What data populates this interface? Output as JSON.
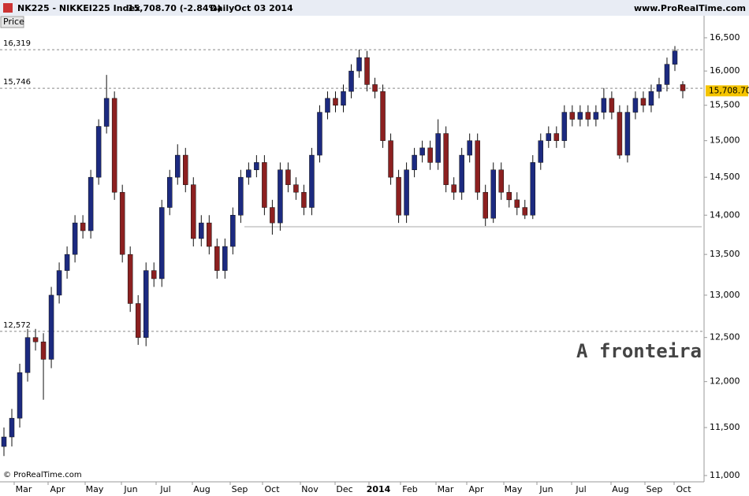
{
  "chart_data": {
    "type": "candlestick",
    "symbol": "NK225 - NIKKEI225 Index",
    "quote": "15,708.70 (-2.84%)",
    "period": "Daily",
    "date": "Oct 03 2014",
    "site": "www.ProRealTime.com",
    "panel_label": "Price",
    "annotation": "A fronteira",
    "copyright": "© ProRealTime.com",
    "log_scale": true,
    "up_color": "#1c2a80",
    "down_color": "#8c2020",
    "categories": [
      "Mar",
      "Apr",
      "May",
      "Jun",
      "Jul",
      "Aug",
      "Sep",
      "Oct",
      "Nov",
      "Dec",
      "2014",
      "Feb",
      "Mar",
      "Apr",
      "May",
      "Jun",
      "Jul",
      "Aug",
      "Sep",
      "Oct"
    ],
    "ylim": [
      10936,
      16840
    ],
    "yticks": [
      {
        "value": 11000,
        "label": "11,000"
      },
      {
        "value": 11500,
        "label": "11,500"
      },
      {
        "value": 12000,
        "label": "12,000"
      },
      {
        "value": 12500,
        "label": "12,500"
      },
      {
        "value": 13000,
        "label": "13,000"
      },
      {
        "value": 13500,
        "label": "13,500"
      },
      {
        "value": 14000,
        "label": "14,000"
      },
      {
        "value": 14500,
        "label": "14,500"
      },
      {
        "value": 15000,
        "label": "15,000"
      },
      {
        "value": 15500,
        "label": "15,500"
      },
      {
        "value": 16000,
        "label": "16,000"
      },
      {
        "value": 16500,
        "label": "16,500"
      }
    ],
    "levels": [
      {
        "value": 16319,
        "label": "16,319"
      },
      {
        "value": 15746,
        "label": "15,746"
      },
      {
        "value": 12572,
        "label": "12,572"
      }
    ],
    "support_level": 13850,
    "last_price": {
      "value": 15708.7,
      "label": "15,708.70"
    },
    "open": [
      11300,
      11400,
      11600,
      12100,
      12500,
      12450,
      12250,
      13000,
      13300,
      13500,
      13900,
      13800,
      14500,
      15200,
      15600,
      14300,
      13500,
      12900,
      12500,
      13300,
      13200,
      14100,
      14500,
      14800,
      14400,
      13700,
      13900,
      13600,
      13300,
      13600,
      14000,
      14500,
      14600,
      14700,
      14100,
      13900,
      14600,
      14400,
      14300,
      14100,
      14800,
      15400,
      15600,
      15500,
      15700,
      16000,
      16200,
      15800,
      15700,
      15000,
      14500,
      14000,
      14600,
      14800,
      14900,
      14700,
      15100,
      14400,
      14300,
      14800,
      15000,
      14300,
      13960,
      14600,
      14300,
      14200,
      14100,
      14000,
      14700,
      15000,
      15100,
      15000,
      15400,
      15300,
      15400,
      15300,
      15400,
      15600,
      15400,
      14800,
      15400,
      15600,
      15500,
      15700,
      15800,
      16100,
      15800
    ],
    "high": [
      11500,
      11700,
      12200,
      12600,
      12600,
      12550,
      13100,
      13400,
      13600,
      14000,
      14000,
      14600,
      15300,
      15942,
      15700,
      14400,
      13600,
      13000,
      13400,
      13400,
      14200,
      14600,
      14950,
      14900,
      14500,
      14000,
      14000,
      13700,
      13700,
      14100,
      14600,
      14700,
      14800,
      14800,
      14200,
      14700,
      14700,
      14500,
      14400,
      14900,
      15500,
      15700,
      15700,
      15800,
      16100,
      16320,
      16300,
      15900,
      15800,
      15100,
      14600,
      14700,
      14900,
      15000,
      15000,
      15300,
      15200,
      14500,
      14900,
      15100,
      15100,
      14400,
      14700,
      14700,
      14400,
      14300,
      14200,
      14800,
      15100,
      15200,
      15200,
      15500,
      15500,
      15500,
      15500,
      15500,
      15750,
      15700,
      15500,
      15500,
      15700,
      15700,
      15800,
      15900,
      16200,
      16374,
      15850
    ],
    "low": [
      11200,
      11300,
      11500,
      12000,
      12350,
      11800,
      12150,
      12900,
      13200,
      13400,
      13700,
      13700,
      14400,
      15100,
      14200,
      13400,
      12800,
      12415,
      12400,
      13100,
      13100,
      14000,
      14400,
      14300,
      13600,
      13600,
      13500,
      13200,
      13200,
      13500,
      13900,
      14400,
      14500,
      14000,
      13750,
      13800,
      14300,
      14200,
      14000,
      14000,
      14700,
      15300,
      15400,
      15400,
      15600,
      15900,
      15700,
      15600,
      14900,
      14400,
      13900,
      13900,
      14500,
      14700,
      14600,
      14600,
      14300,
      14200,
      14200,
      14700,
      14200,
      13860,
      13900,
      14200,
      14100,
      14000,
      13950,
      13950,
      14600,
      14900,
      14900,
      14900,
      15200,
      15200,
      15200,
      15200,
      15300,
      15300,
      14750,
      14700,
      15300,
      15400,
      15400,
      15600,
      15700,
      16000,
      15600
    ],
    "close": [
      11400,
      11600,
      12100,
      12500,
      12450,
      12250,
      13000,
      13300,
      13500,
      13900,
      13800,
      14500,
      15200,
      15600,
      14300,
      13500,
      12900,
      12500,
      13300,
      13200,
      14100,
      14500,
      14800,
      14400,
      13700,
      13900,
      13600,
      13300,
      13600,
      14000,
      14500,
      14600,
      14700,
      14100,
      13900,
      14600,
      14400,
      14300,
      14100,
      14800,
      15400,
      15600,
      15500,
      15700,
      16000,
      16200,
      15800,
      15700,
      15000,
      14500,
      14000,
      14600,
      14800,
      14900,
      14700,
      15100,
      14400,
      14300,
      14800,
      15000,
      14300,
      13960,
      14600,
      14300,
      14200,
      14100,
      14000,
      14700,
      15000,
      15100,
      15000,
      15400,
      15300,
      15400,
      15300,
      15400,
      15600,
      15400,
      14800,
      15400,
      15600,
      15500,
      15700,
      15800,
      16100,
      16300,
      15708.7
    ]
  }
}
